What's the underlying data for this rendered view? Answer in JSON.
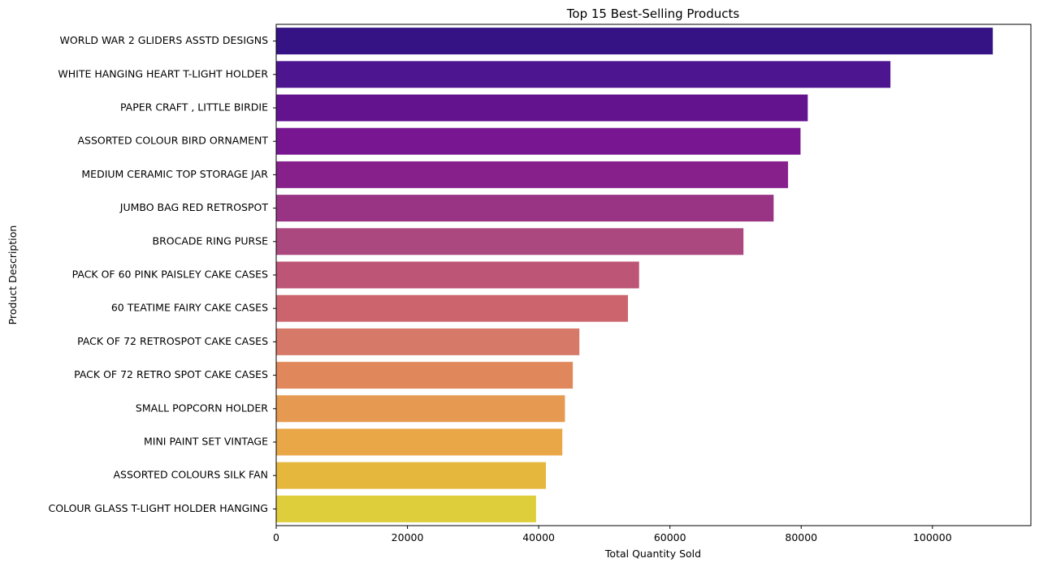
{
  "chart_data": {
    "type": "bar",
    "orientation": "horizontal",
    "title": "Top 15 Best-Selling Products",
    "xlabel": "Total Quantity Sold",
    "ylabel": "Product Description",
    "xlim": [
      0,
      115000
    ],
    "xticks": [
      0,
      20000,
      40000,
      60000,
      80000,
      100000
    ],
    "grid": false,
    "categories": [
      "WORLD WAR 2 GLIDERS ASSTD DESIGNS",
      "WHITE HANGING HEART T-LIGHT HOLDER",
      "PAPER CRAFT , LITTLE BIRDIE",
      "ASSORTED COLOUR BIRD ORNAMENT",
      "MEDIUM CERAMIC TOP STORAGE JAR",
      "JUMBO BAG RED RETROSPOT",
      "BROCADE RING PURSE ",
      "PACK OF 60 PINK PAISLEY CAKE CASES",
      "60 TEATIME FAIRY CAKE CASES",
      "PACK OF 72 RETROSPOT CAKE CASES",
      "PACK OF 72 RETRO SPOT CAKE CASES",
      "SMALL POPCORN HOLDER",
      "MINI PAINT SET VINTAGE ",
      "ASSORTED COLOURS SILK FAN",
      "COLOUR GLASS T-LIGHT HOLDER HANGING"
    ],
    "values": [
      109200,
      93600,
      81000,
      79900,
      78000,
      75800,
      71200,
      55300,
      53600,
      46200,
      45200,
      44000,
      43600,
      41100,
      39600
    ],
    "colors": [
      "#351385",
      "#4e1591",
      "#64138f",
      "#781692",
      "#88208c",
      "#993485",
      "#ab487f",
      "#bd5676",
      "#cc646e",
      "#d67968",
      "#e0885b",
      "#e69951",
      "#e9a747",
      "#e5b83d",
      "#dece3b"
    ]
  }
}
